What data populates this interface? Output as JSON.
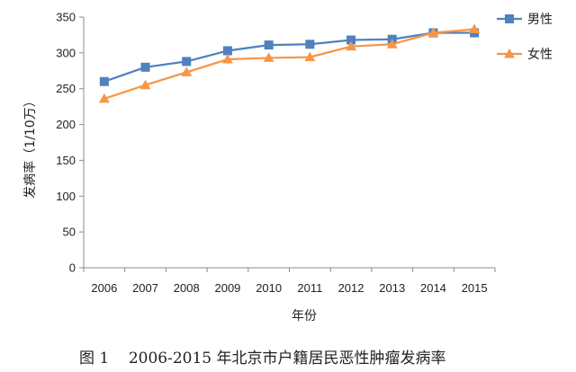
{
  "chart_data": {
    "type": "line",
    "categories": [
      "2006",
      "2007",
      "2008",
      "2009",
      "2010",
      "2011",
      "2012",
      "2013",
      "2014",
      "2015"
    ],
    "series": [
      {
        "name": "男性",
        "color": "#4f81bd",
        "marker": "square",
        "values": [
          260,
          280,
          288,
          303,
          311,
          312,
          318,
          319,
          328,
          328
        ]
      },
      {
        "name": "女性",
        "color": "#f79646",
        "marker": "triangle",
        "values": [
          236,
          255,
          273,
          291,
          293,
          294,
          309,
          312,
          328,
          333
        ]
      }
    ],
    "xlabel": "年份",
    "ylabel": "发病率（1/10万）",
    "ylim": [
      0,
      350
    ],
    "yticks": [
      0,
      50,
      100,
      150,
      200,
      250,
      300,
      350
    ],
    "legend_position": "top-right",
    "grid": false,
    "caption": "图 1    2006-2015 年北京市户籍居民恶性肿瘤发病率"
  }
}
